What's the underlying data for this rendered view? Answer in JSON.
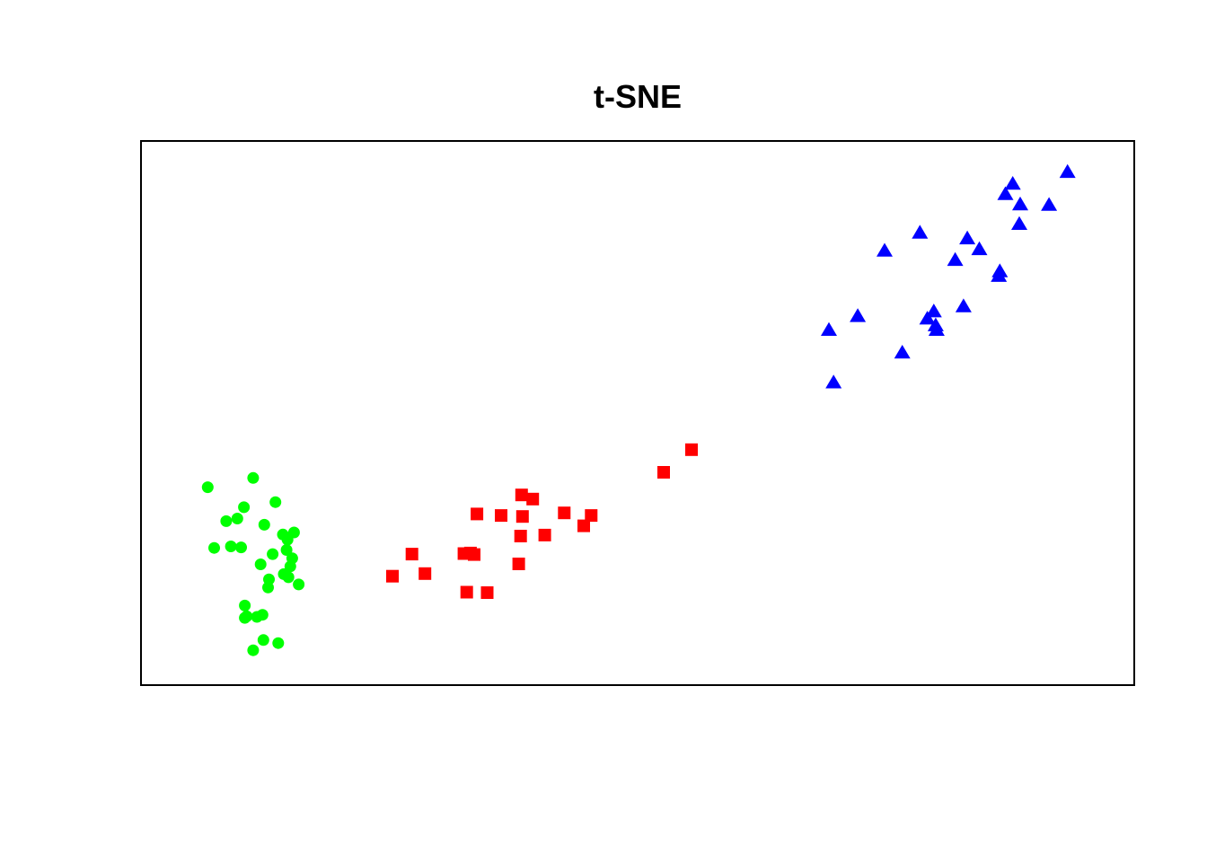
{
  "chart_data": {
    "type": "scatter",
    "title": "t-SNE",
    "xlabel": "",
    "ylabel": "",
    "xlim": [
      0,
      100
    ],
    "ylim": [
      0,
      100
    ],
    "axes_shown": false,
    "grid": false,
    "legend": "none",
    "series": [
      {
        "marker": "circle",
        "color": "#00ff00",
        "points": [
          [
            3.7,
            35.5
          ],
          [
            8.6,
            37.3
          ],
          [
            11.0,
            32.6
          ],
          [
            7.6,
            31.6
          ],
          [
            6.9,
            29.4
          ],
          [
            5.7,
            28.9
          ],
          [
            9.8,
            28.2
          ],
          [
            11.8,
            26.3
          ],
          [
            13.0,
            26.7
          ],
          [
            12.3,
            25.3
          ],
          [
            6.2,
            24.0
          ],
          [
            4.4,
            23.7
          ],
          [
            7.3,
            23.8
          ],
          [
            12.2,
            23.3
          ],
          [
            10.7,
            22.5
          ],
          [
            12.8,
            21.7
          ],
          [
            9.4,
            20.5
          ],
          [
            12.6,
            20.1
          ],
          [
            11.9,
            18.6
          ],
          [
            12.4,
            18.0
          ],
          [
            10.3,
            17.6
          ],
          [
            13.5,
            16.6
          ],
          [
            10.2,
            16.0
          ],
          [
            7.7,
            12.5
          ],
          [
            7.9,
            10.4
          ],
          [
            7.7,
            10.1
          ],
          [
            9.6,
            10.7
          ],
          [
            9.0,
            10.3
          ],
          [
            9.7,
            5.8
          ],
          [
            11.3,
            5.2
          ],
          [
            8.6,
            3.8
          ]
        ]
      },
      {
        "marker": "square",
        "color": "#ff0000",
        "points": [
          [
            55.8,
            42.8
          ],
          [
            52.8,
            38.4
          ],
          [
            37.5,
            34.0
          ],
          [
            38.7,
            33.2
          ],
          [
            32.7,
            30.3
          ],
          [
            35.3,
            30.0
          ],
          [
            37.6,
            29.8
          ],
          [
            42.1,
            30.5
          ],
          [
            45.0,
            30.0
          ],
          [
            44.2,
            28.0
          ],
          [
            40.0,
            26.2
          ],
          [
            37.4,
            26.0
          ],
          [
            32.4,
            22.4
          ],
          [
            31.3,
            22.6
          ],
          [
            32.0,
            22.7
          ],
          [
            25.7,
            22.5
          ],
          [
            37.2,
            20.6
          ],
          [
            27.1,
            18.7
          ],
          [
            23.6,
            18.2
          ],
          [
            31.6,
            15.1
          ],
          [
            33.8,
            15.0
          ]
        ]
      },
      {
        "marker": "triangle",
        "color": "#0000ff",
        "points": [
          [
            96.3,
            96.8
          ],
          [
            90.4,
            94.5
          ],
          [
            89.6,
            92.5
          ],
          [
            91.2,
            90.5
          ],
          [
            94.3,
            90.4
          ],
          [
            91.1,
            86.7
          ],
          [
            80.4,
            85.0
          ],
          [
            85.5,
            83.9
          ],
          [
            86.8,
            81.8
          ],
          [
            76.6,
            81.5
          ],
          [
            84.2,
            79.7
          ],
          [
            89.0,
            77.5
          ],
          [
            88.9,
            76.6
          ],
          [
            85.1,
            70.7
          ],
          [
            81.9,
            69.7
          ],
          [
            73.7,
            68.8
          ],
          [
            81.2,
            68.3
          ],
          [
            82.1,
            67.0
          ],
          [
            82.2,
            66.1
          ],
          [
            70.6,
            66.1
          ],
          [
            78.5,
            61.7
          ],
          [
            71.1,
            55.9
          ]
        ]
      }
    ]
  }
}
